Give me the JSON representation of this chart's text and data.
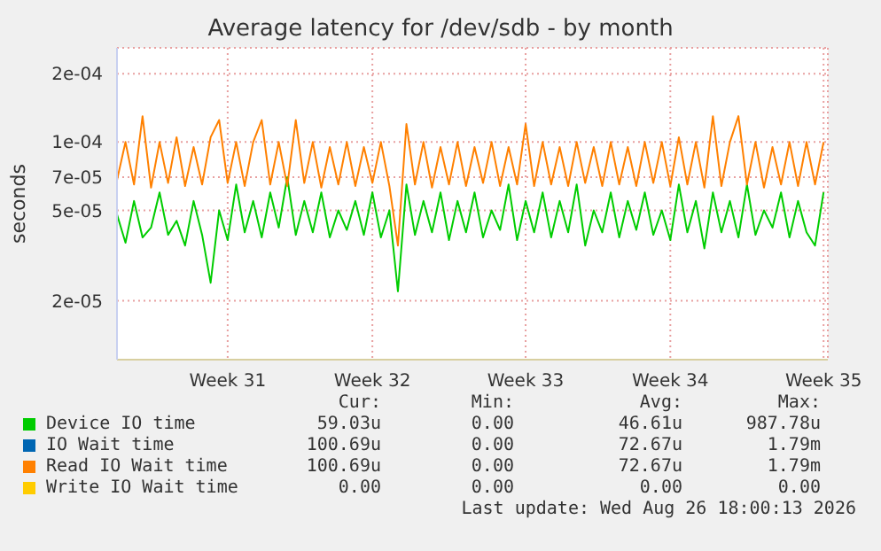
{
  "chart_data": {
    "type": "line",
    "title": "Average latency for /dev/sdb - by month",
    "ylabel": "seconds",
    "log": true,
    "grid": true,
    "legend": "bottom",
    "marker": "none",
    "line_style": "solid",
    "categories": [
      null,
      null,
      null,
      null,
      null,
      null,
      null,
      null,
      null,
      null,
      null,
      null,
      null,
      "Week 31",
      null,
      null,
      null,
      null,
      null,
      null,
      null,
      null,
      null,
      null,
      null,
      null,
      null,
      null,
      null,
      null,
      "Week 32",
      null,
      null,
      null,
      null,
      null,
      null,
      null,
      null,
      null,
      null,
      null,
      null,
      null,
      null,
      null,
      null,
      null,
      "Week 33",
      null,
      null,
      null,
      null,
      null,
      null,
      null,
      null,
      null,
      null,
      null,
      null,
      null,
      null,
      null,
      null,
      "Week 34",
      null,
      null,
      null,
      null,
      null,
      null,
      null,
      null,
      null,
      null,
      null,
      null,
      null,
      null,
      null,
      null,
      null,
      "Week 35"
    ],
    "ylim": [
      1.1e-05,
      0.00026
    ],
    "yticks": [
      {
        "value": 2e-05,
        "label": "2e-05"
      },
      {
        "value": 5e-05,
        "label": "5e-05"
      },
      {
        "value": 7e-05,
        "label": "7e-05"
      },
      {
        "value": 0.0001,
        "label": "1e-04"
      },
      {
        "value": 0.0002,
        "label": "2e-04"
      }
    ],
    "series": [
      {
        "name": "Device IO time",
        "color": "#00cc00",
        "values": [
          4.8e-05,
          3.6e-05,
          5.5e-05,
          3.8e-05,
          4.2e-05,
          6e-05,
          3.9e-05,
          4.5e-05,
          3.5e-05,
          5.5e-05,
          3.9e-05,
          2.4e-05,
          5e-05,
          3.7e-05,
          6.5e-05,
          4e-05,
          5.5e-05,
          3.8e-05,
          6e-05,
          4.2e-05,
          7e-05,
          3.9e-05,
          5.5e-05,
          4e-05,
          6e-05,
          3.8e-05,
          5e-05,
          4.1e-05,
          5.5e-05,
          3.9e-05,
          6e-05,
          3.8e-05,
          5e-05,
          2.2e-05,
          6.5e-05,
          3.9e-05,
          5.5e-05,
          4e-05,
          6e-05,
          3.7e-05,
          5.5e-05,
          4e-05,
          6e-05,
          3.8e-05,
          5e-05,
          4.1e-05,
          6.5e-05,
          3.7e-05,
          5.5e-05,
          4e-05,
          6e-05,
          3.8e-05,
          5.5e-05,
          4e-05,
          6.5e-05,
          3.5e-05,
          5e-05,
          4e-05,
          6e-05,
          3.8e-05,
          5.5e-05,
          4.1e-05,
          6e-05,
          3.9e-05,
          5e-05,
          3.7e-05,
          6.5e-05,
          4e-05,
          5.5e-05,
          3.4e-05,
          6e-05,
          4e-05,
          5.5e-05,
          3.8e-05,
          6.5e-05,
          3.9e-05,
          5e-05,
          4.2e-05,
          6e-05,
          3.8e-05,
          5.5e-05,
          4e-05,
          3.5e-05,
          6e-05
        ]
      },
      {
        "name": "IO Wait time",
        "color": "#0066b3",
        "values": [
          null,
          null,
          null,
          null,
          null,
          null,
          null,
          null,
          null,
          null,
          null,
          null,
          null,
          null,
          null,
          null,
          null,
          null,
          null,
          null,
          null,
          null,
          null,
          null,
          null,
          null,
          null,
          null,
          null,
          null,
          null,
          null,
          null,
          null,
          null,
          null,
          null,
          null,
          null,
          null,
          null,
          null,
          null,
          null,
          null,
          null,
          null,
          null,
          null,
          null,
          null,
          null,
          null,
          null,
          null,
          null,
          null,
          null,
          null,
          null,
          null,
          null,
          null,
          null,
          null,
          null,
          null,
          null,
          null,
          null,
          null,
          null,
          null,
          null,
          null,
          null,
          null,
          null,
          null,
          null,
          null,
          null,
          null,
          null
        ]
      },
      {
        "name": "Read IO Wait time",
        "color": "#ff8000",
        "values": [
          6.8e-05,
          0.0001,
          6.5e-05,
          0.00013,
          6.3e-05,
          0.0001,
          6.6e-05,
          0.000105,
          6.4e-05,
          9.5e-05,
          6.5e-05,
          0.000105,
          0.000125,
          6.6e-05,
          0.0001,
          6.4e-05,
          0.0001,
          0.000125,
          6.5e-05,
          0.0001,
          6.4e-05,
          0.000125,
          6.6e-05,
          0.0001,
          6.3e-05,
          9.5e-05,
          6.5e-05,
          0.0001,
          6.4e-05,
          9.5e-05,
          6.6e-05,
          0.0001,
          6.4e-05,
          3.5e-05,
          0.00012,
          6.5e-05,
          0.0001,
          6.3e-05,
          9.5e-05,
          6.5e-05,
          0.0001,
          6.4e-05,
          9.5e-05,
          6.6e-05,
          0.0001,
          6.4e-05,
          9.5e-05,
          6.5e-05,
          0.00012,
          6.4e-05,
          0.0001,
          6.5e-05,
          9.5e-05,
          6.4e-05,
          0.0001,
          6.6e-05,
          9.5e-05,
          6.4e-05,
          0.0001,
          6.5e-05,
          9.5e-05,
          6.4e-05,
          0.0001,
          6.6e-05,
          0.0001,
          6.4e-05,
          0.000105,
          6.5e-05,
          0.0001,
          6.3e-05,
          0.00013,
          6.4e-05,
          0.0001,
          0.00013,
          6.5e-05,
          0.0001,
          6.3e-05,
          9.5e-05,
          6.5e-05,
          0.0001,
          6.4e-05,
          0.0001,
          6.5e-05,
          0.0001
        ]
      },
      {
        "name": "Write IO Wait time",
        "color": "#ffcc00",
        "values": [
          null,
          null,
          null,
          null,
          null,
          null,
          null,
          null,
          null,
          null,
          null,
          null,
          null,
          null,
          null,
          null,
          null,
          null,
          null,
          null,
          null,
          null,
          null,
          null,
          null,
          null,
          null,
          null,
          null,
          null,
          null,
          null,
          null,
          null,
          null,
          null,
          null,
          null,
          null,
          null,
          null,
          null,
          null,
          null,
          null,
          null,
          null,
          null,
          null,
          null,
          null,
          null,
          null,
          null,
          null,
          null,
          null,
          null,
          null,
          null,
          null,
          null,
          null,
          null,
          null,
          null,
          null,
          null,
          null,
          null,
          null,
          null,
          null,
          null,
          null,
          null,
          null,
          null,
          null,
          null,
          null,
          null,
          null,
          null
        ]
      }
    ],
    "annotations": [
      "Cur:",
      "Min:",
      "Avg:",
      "Max:",
      "59.03u",
      "0.00",
      "46.61u",
      "987.78u",
      "100.69u",
      "0.00",
      "72.67u",
      "1.79m",
      "100.69u",
      "0.00",
      "72.67u",
      "1.79m",
      "0.00",
      "0.00",
      "0.00",
      "0.00",
      "Last update: Wed Aug 26 18:00:13 2026"
    ]
  }
}
